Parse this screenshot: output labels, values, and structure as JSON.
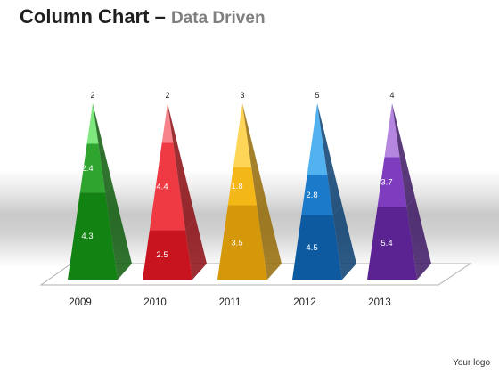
{
  "title": {
    "main": "Column Chart",
    "separator": "–",
    "sub": "Data Driven"
  },
  "logo_text": "Your logo",
  "chart_data": {
    "type": "bar",
    "stacked": true,
    "categories": [
      "2009",
      "2010",
      "2011",
      "2012",
      "2013"
    ],
    "series": [
      {
        "values": [
          4.3,
          2.5,
          3.5,
          4.5,
          5.4
        ]
      },
      {
        "values": [
          2.4,
          4.4,
          1.8,
          2.8,
          3.7
        ]
      },
      {
        "values": [
          2,
          2,
          3,
          5,
          4
        ]
      }
    ],
    "colors": [
      {
        "bottom": "#128212",
        "middle": "#2fa42f",
        "top": "#7ee87e",
        "shade": "#0a5a0a"
      },
      {
        "bottom": "#c8141e",
        "middle": "#ef3a44",
        "top": "#f7848a",
        "shade": "#8a0a10"
      },
      {
        "bottom": "#d4980a",
        "middle": "#f4b718",
        "top": "#ffd558",
        "shade": "#946a05"
      },
      {
        "bottom": "#0d5aa0",
        "middle": "#1c7acb",
        "top": "#52b2f0",
        "shade": "#073d6e"
      },
      {
        "bottom": "#5b2392",
        "middle": "#7d3dbe",
        "top": "#b486df",
        "shade": "#3d1664"
      }
    ],
    "style": "3d-pyramid"
  }
}
